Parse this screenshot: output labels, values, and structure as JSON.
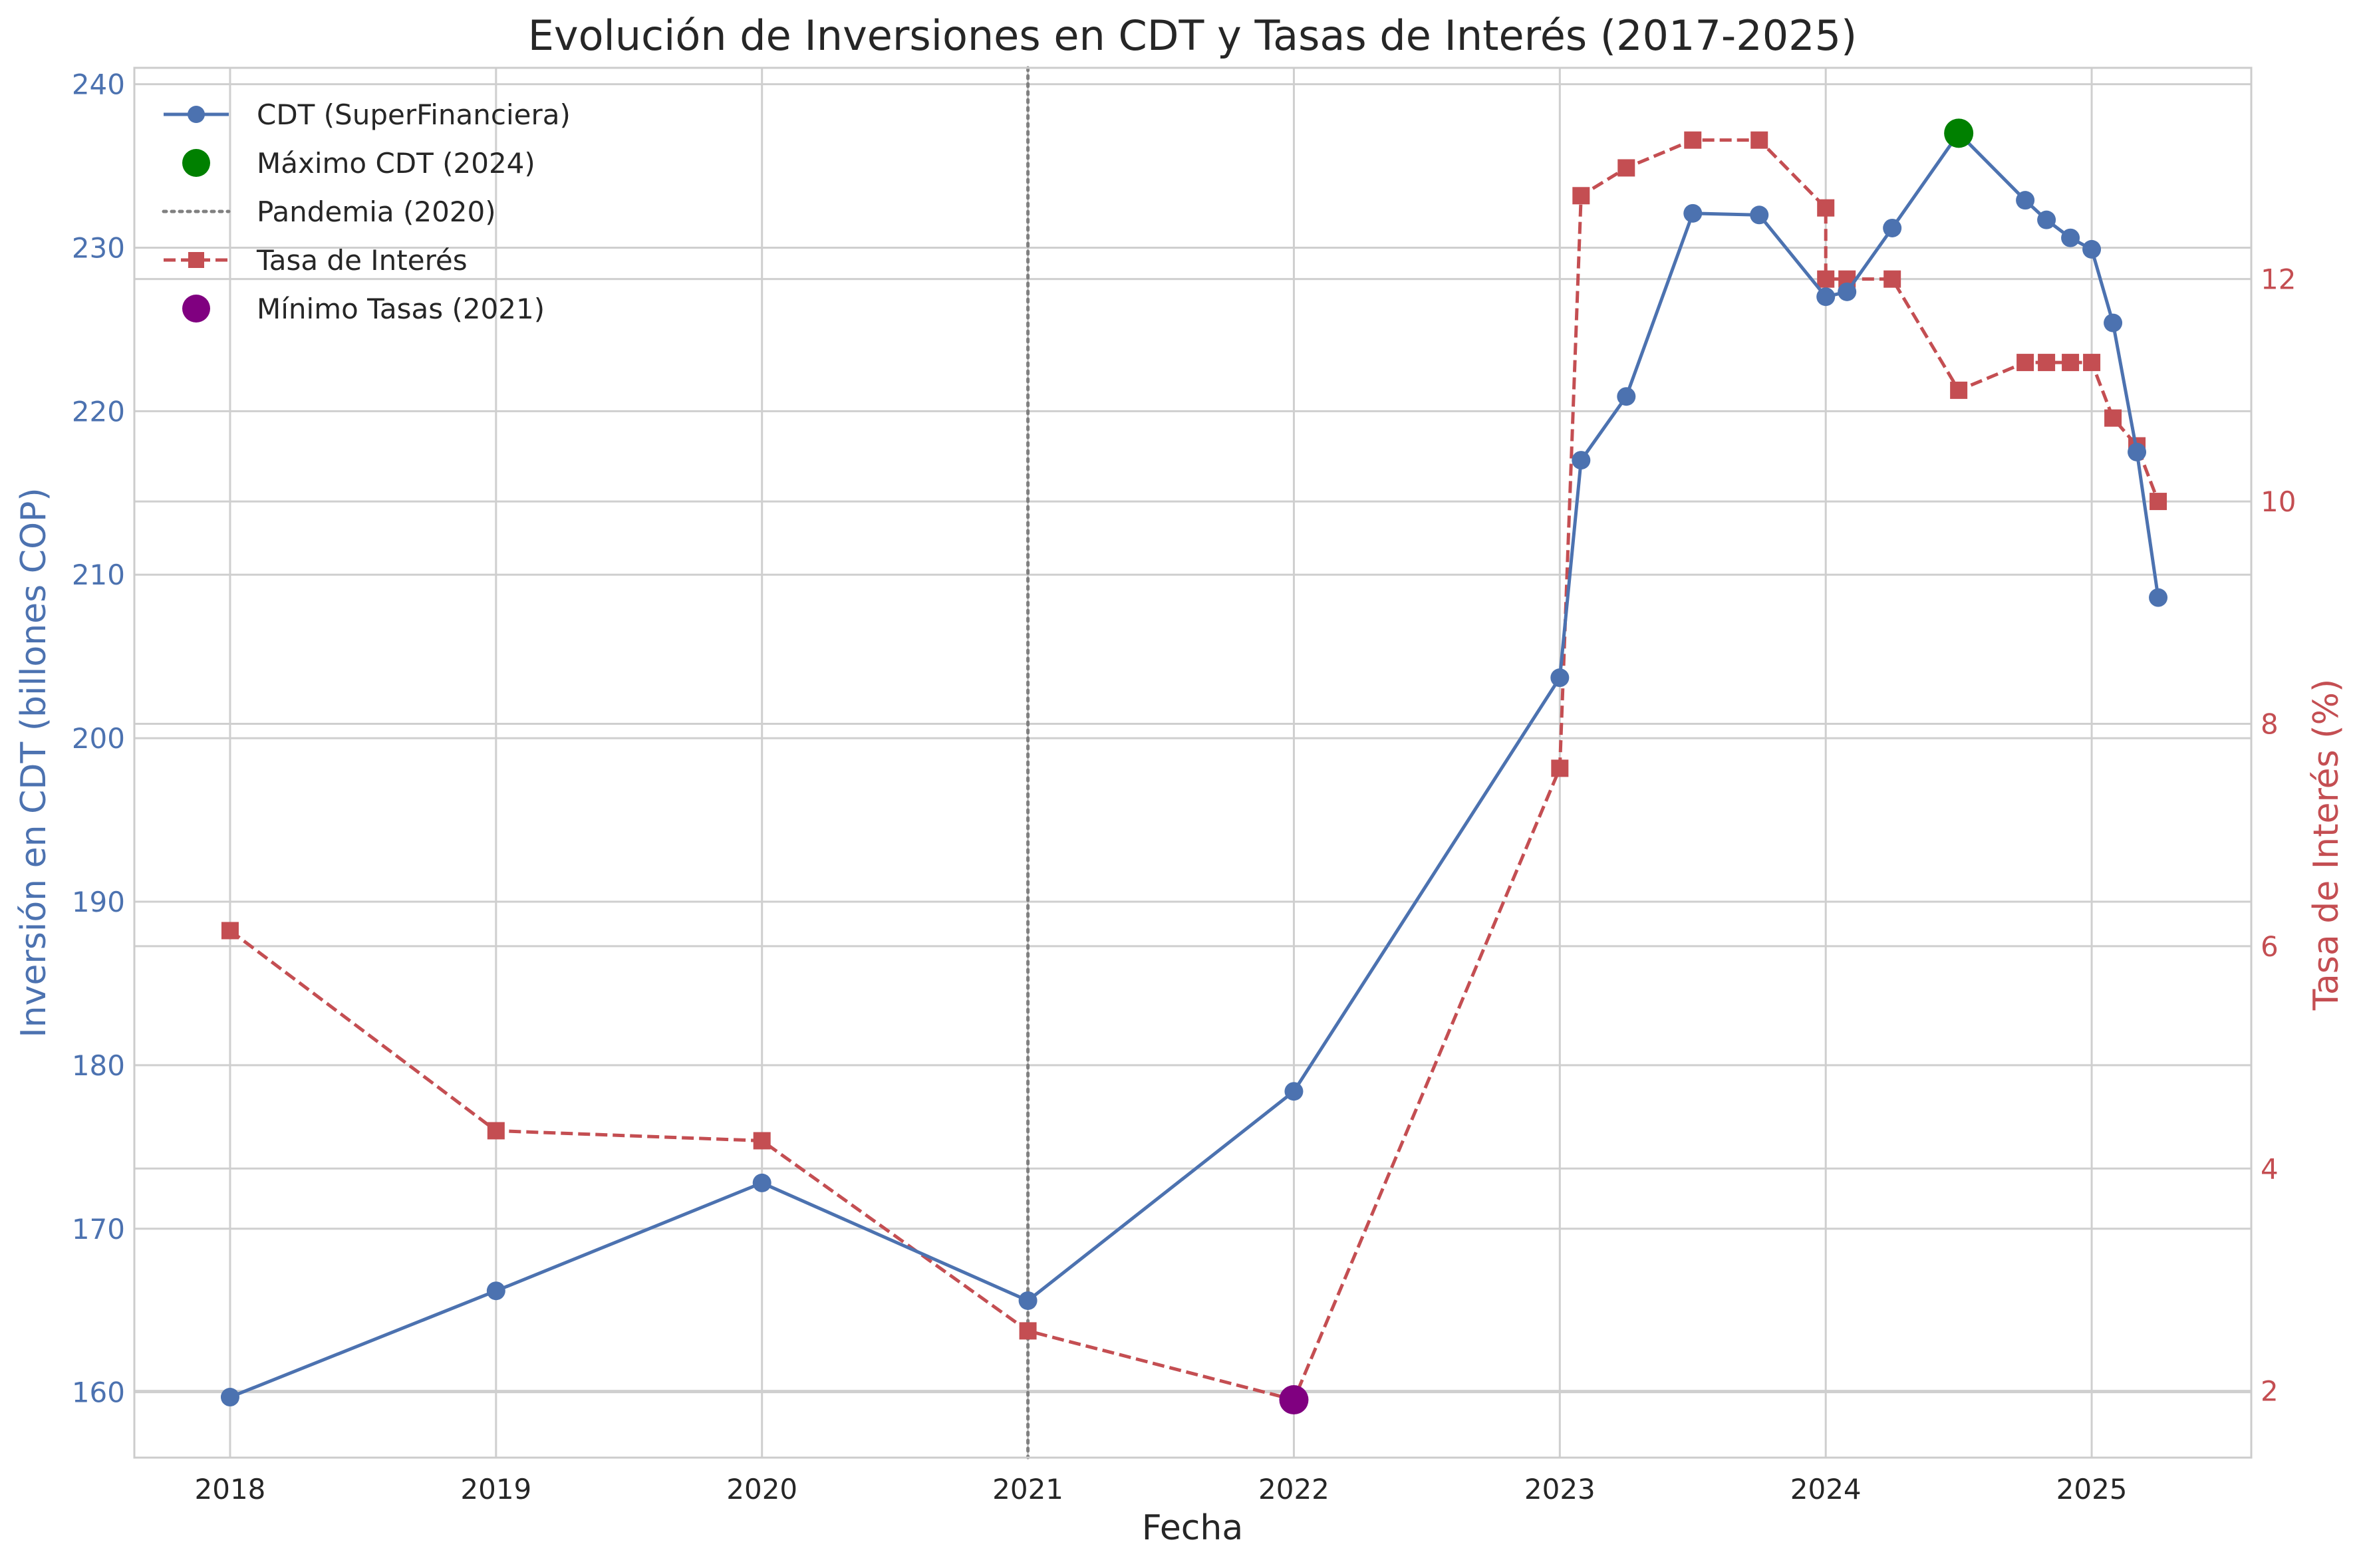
{
  "chart_data": {
    "type": "line",
    "title": "Evolución de Inversiones en CDT y Tasas de Interés (2017-2025)",
    "xlabel": "Fecha",
    "ylabel_left": "Inversión en CDT (billones COP)",
    "ylabel_right": "Tasa de Interés (%)",
    "xlim": [
      2017.64,
      2025.6
    ],
    "ylim_left": [
      156,
      241
    ],
    "ylim_right": [
      1.4,
      13.9
    ],
    "x_ticks": [
      2018,
      2019,
      2020,
      2021,
      2022,
      2023,
      2024,
      2025
    ],
    "x_tick_labels": [
      "2018",
      "2019",
      "2020",
      "2021",
      "2022",
      "2023",
      "2024",
      "2025"
    ],
    "y_left_ticks": [
      160,
      170,
      180,
      190,
      200,
      210,
      220,
      230,
      240
    ],
    "y_left_tick_labels": [
      "160",
      "170",
      "180",
      "190",
      "200",
      "210",
      "220",
      "230",
      "240"
    ],
    "y_right_ticks": [
      2,
      4,
      6,
      8,
      10,
      12
    ],
    "y_right_tick_labels": [
      "2",
      "4",
      "6",
      "8",
      "10",
      "12"
    ],
    "grid": true,
    "legend_position": "top-left",
    "series": [
      {
        "name": "CDT (SuperFinanciera)",
        "axis": "left",
        "color": "#4c72b0",
        "style": "solid",
        "marker": "circle",
        "x": [
          2018.0,
          2019.0,
          2020.0,
          2021.0,
          2022.0,
          2023.0,
          2023.08,
          2023.25,
          2023.5,
          2023.75,
          2024.0,
          2024.08,
          2024.25,
          2024.5,
          2024.75,
          2024.83,
          2024.92,
          2025.0,
          2025.08,
          2025.17,
          2025.25
        ],
        "values": [
          159.7,
          166.2,
          172.8,
          165.6,
          178.4,
          203.7,
          217.0,
          220.9,
          232.1,
          232.0,
          227.0,
          227.3,
          231.2,
          237.0,
          232.9,
          231.7,
          230.6,
          229.9,
          225.4,
          217.5,
          208.6
        ]
      },
      {
        "name": "Tasa de Interés",
        "axis": "right",
        "color": "#c44e52",
        "style": "dashed",
        "marker": "square",
        "x": [
          2018.0,
          2019.0,
          2020.0,
          2021.0,
          2022.0,
          2023.0,
          2023.08,
          2023.25,
          2023.5,
          2023.75,
          2024.0,
          2024.0,
          2024.08,
          2024.25,
          2024.5,
          2024.75,
          2024.83,
          2024.92,
          2025.0,
          2025.08,
          2025.17,
          2025.25
        ],
        "values": [
          6.14,
          4.34,
          4.25,
          2.54,
          1.92,
          7.6,
          12.75,
          13.0,
          13.25,
          13.25,
          12.64,
          12.0,
          12.0,
          12.0,
          11.0,
          11.25,
          11.25,
          11.25,
          11.25,
          10.75,
          10.5,
          10.0
        ]
      },
      {
        "name": "Pandemia (2020)",
        "type": "vline",
        "color": "#808080",
        "style": "dotted",
        "x": 2021.0
      },
      {
        "name": "Máximo CDT (2024)",
        "type": "point",
        "axis": "left",
        "color": "#008000",
        "x": 2024.5,
        "value": 237.0
      },
      {
        "name": "Mínimo Tasas (2021)",
        "type": "point",
        "axis": "right",
        "color": "#800080",
        "x": 2022.0,
        "value": 1.92
      }
    ],
    "legend": [
      {
        "label": "CDT (SuperFinanciera)",
        "color": "#4c72b0",
        "kind": "line-circle"
      },
      {
        "label": "Máximo CDT (2024)",
        "color": "#008000",
        "kind": "dot"
      },
      {
        "label": "Pandemia (2020)",
        "color": "#808080",
        "kind": "dotted-line"
      },
      {
        "label": "Tasa de Interés",
        "color": "#c44e52",
        "kind": "dashed-square"
      },
      {
        "label": "Mínimo Tasas (2021)",
        "color": "#800080",
        "kind": "dot"
      }
    ]
  }
}
